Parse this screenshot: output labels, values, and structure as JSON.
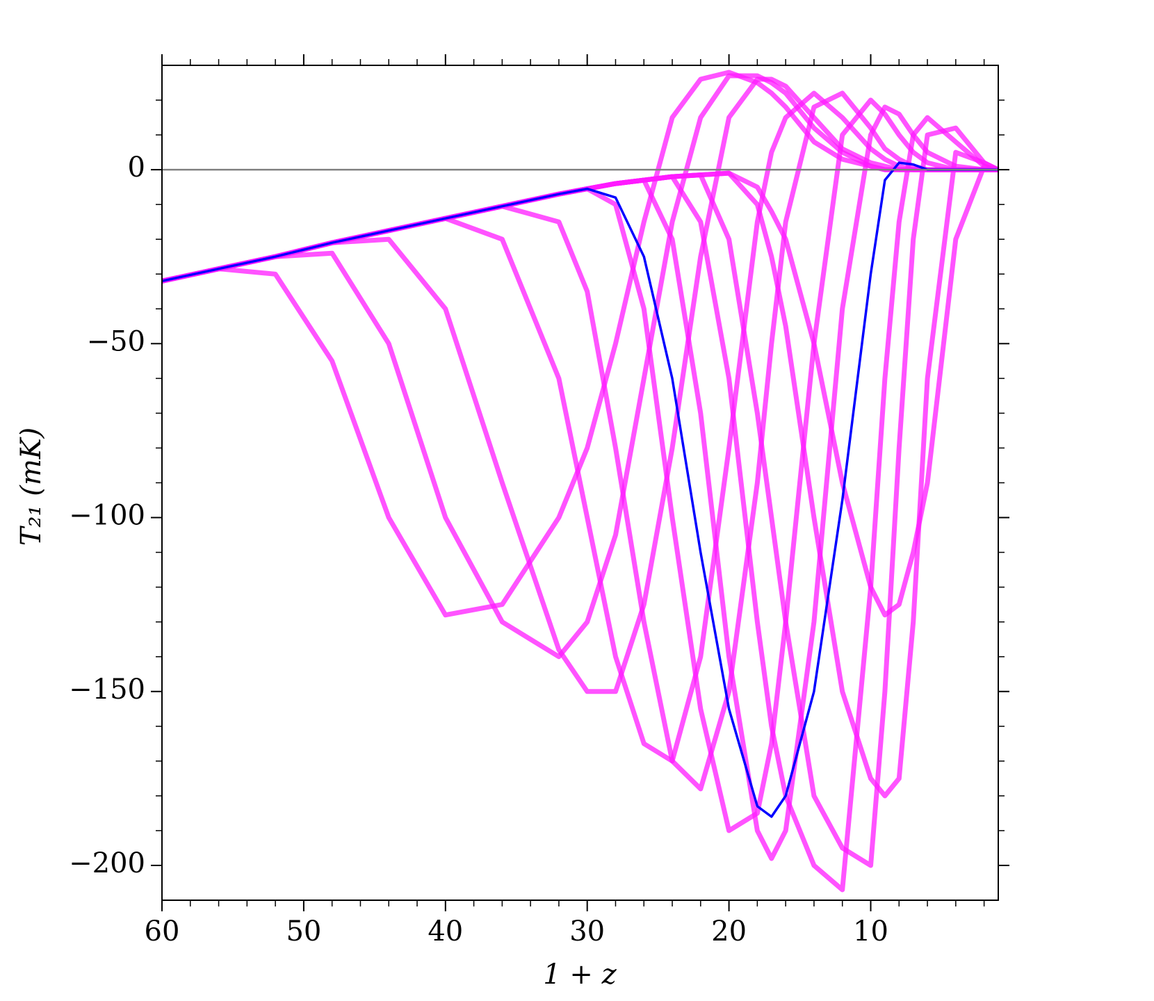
{
  "chart_data": {
    "type": "line",
    "xlabel": "1 + z",
    "ylabel": "T₂₁ (mK)",
    "xlim": [
      60,
      1
    ],
    "ylim": [
      -210,
      30
    ],
    "xticks": [
      60,
      50,
      40,
      30,
      20,
      10
    ],
    "xminorticks": [
      58,
      56,
      54,
      52,
      48,
      46,
      44,
      42,
      38,
      36,
      34,
      32,
      28,
      26,
      24,
      22,
      18,
      16,
      14,
      12,
      8,
      6,
      4,
      2
    ],
    "yticks": [
      {
        "value": 0,
        "label": "0"
      },
      {
        "value": -50,
        "label": "−50"
      },
      {
        "value": -100,
        "label": "−100"
      },
      {
        "value": -150,
        "label": "−150"
      },
      {
        "value": -200,
        "label": "−200"
      }
    ],
    "yminorticks": [
      20,
      10,
      -10,
      -20,
      -30,
      -40,
      -60,
      -70,
      -80,
      -90,
      -110,
      -120,
      -130,
      -140,
      -160,
      -170,
      -180,
      -190
    ],
    "hline": 0,
    "hline_color": "#808080",
    "x": [
      60,
      56,
      52,
      48,
      44,
      40,
      36,
      32,
      30,
      28,
      26,
      24,
      22,
      20,
      18,
      17,
      16,
      14,
      12,
      10,
      9,
      8,
      7,
      6,
      4,
      2,
      1
    ],
    "series": [
      {
        "color": "#ff1aff",
        "values": [
          -32,
          -28.5,
          -30,
          -55,
          -100,
          -128,
          -125,
          -100,
          -80,
          -50,
          -15,
          15,
          26,
          28,
          25,
          22,
          18,
          8,
          3,
          1,
          0,
          0,
          0,
          0,
          0,
          0,
          0
        ]
      },
      {
        "color": "#ff1aff",
        "values": [
          -32,
          -28.5,
          -25,
          -24,
          -50,
          -100,
          -130,
          -140,
          -130,
          -105,
          -60,
          -15,
          15,
          27,
          27,
          25,
          22,
          12,
          5,
          1,
          0,
          0,
          0,
          0,
          0,
          0,
          0
        ]
      },
      {
        "color": "#ff1aff",
        "values": [
          -32,
          -28.5,
          -25,
          -21,
          -20,
          -40,
          -90,
          -138,
          -150,
          -150,
          -125,
          -80,
          -25,
          15,
          26,
          26,
          24,
          15,
          6,
          2,
          1,
          0,
          0,
          0,
          0,
          0,
          0
        ]
      },
      {
        "color": "#ff1aff",
        "values": [
          -32,
          -28.5,
          -25,
          -21,
          -17.5,
          -14,
          -20,
          -60,
          -100,
          -140,
          -165,
          -170,
          -140,
          -80,
          -15,
          5,
          15,
          22,
          15,
          6,
          3,
          1,
          0,
          0,
          0,
          0,
          0
        ]
      },
      {
        "color": "#ff1aff",
        "values": [
          -32,
          -28.5,
          -25,
          -21,
          -17.5,
          -14,
          -10.5,
          -15,
          -35,
          -80,
          -130,
          -170,
          -178,
          -150,
          -90,
          -50,
          -15,
          18,
          22,
          12,
          6,
          3,
          1,
          0,
          0,
          0,
          0
        ]
      },
      {
        "color": "#ff1aff",
        "values": [
          -32,
          -28.5,
          -25,
          -21,
          -17.5,
          -14,
          -10.5,
          -7,
          -5.5,
          -10,
          -40,
          -100,
          -155,
          -190,
          -185,
          -165,
          -130,
          -50,
          10,
          20,
          16,
          10,
          5,
          2,
          0,
          0,
          0
        ]
      },
      {
        "color": "#ff1aff",
        "values": [
          -32,
          -28.5,
          -25,
          -21,
          -17.5,
          -14,
          -10.5,
          -7,
          -5.5,
          -4,
          -3,
          -20,
          -70,
          -140,
          -190,
          -198,
          -190,
          -130,
          -40,
          10,
          18,
          16,
          10,
          5,
          1,
          0,
          0
        ]
      },
      {
        "color": "#ff1aff",
        "values": [
          -32,
          -28.5,
          -25,
          -21,
          -17.5,
          -14,
          -10.5,
          -7,
          -5.5,
          -4,
          -3,
          -2,
          -15,
          -60,
          -130,
          -160,
          -180,
          -200,
          -207,
          -120,
          -60,
          -15,
          10,
          15,
          8,
          1,
          0
        ]
      },
      {
        "color": "#ff1aff",
        "values": [
          -32,
          -28.5,
          -25,
          -21,
          -17.5,
          -14,
          -10.5,
          -7,
          -5.5,
          -4,
          -3,
          -2,
          -1.5,
          -20,
          -70,
          -100,
          -130,
          -180,
          -195,
          -200,
          -150,
          -80,
          -20,
          10,
          12,
          2,
          0
        ]
      },
      {
        "color": "#ff1aff",
        "values": [
          -32,
          -28.5,
          -25,
          -21,
          -17.5,
          -14,
          -10.5,
          -7,
          -5.5,
          -4,
          -3,
          -2,
          -1.5,
          -1,
          -10,
          -25,
          -45,
          -100,
          -150,
          -175,
          -180,
          -175,
          -130,
          -60,
          5,
          2,
          0
        ]
      },
      {
        "color": "#ff1aff",
        "values": [
          -32,
          -28.5,
          -25,
          -21,
          -17.5,
          -14,
          -10.5,
          -7,
          -5.5,
          -4,
          -3,
          -2,
          -1.5,
          -1,
          -5,
          -12,
          -20,
          -50,
          -90,
          -120,
          -128,
          -125,
          -110,
          -90,
          -20,
          1,
          0
        ]
      },
      {
        "color": "#0000ff",
        "values": [
          -32,
          -28.5,
          -25,
          -21,
          -17.5,
          -14,
          -10.5,
          -7,
          -5.5,
          -8,
          -25,
          -60,
          -110,
          -155,
          -183,
          -186,
          -180,
          -150,
          -95,
          -30,
          -3,
          2,
          1.5,
          0,
          0,
          0,
          0
        ]
      }
    ]
  }
}
